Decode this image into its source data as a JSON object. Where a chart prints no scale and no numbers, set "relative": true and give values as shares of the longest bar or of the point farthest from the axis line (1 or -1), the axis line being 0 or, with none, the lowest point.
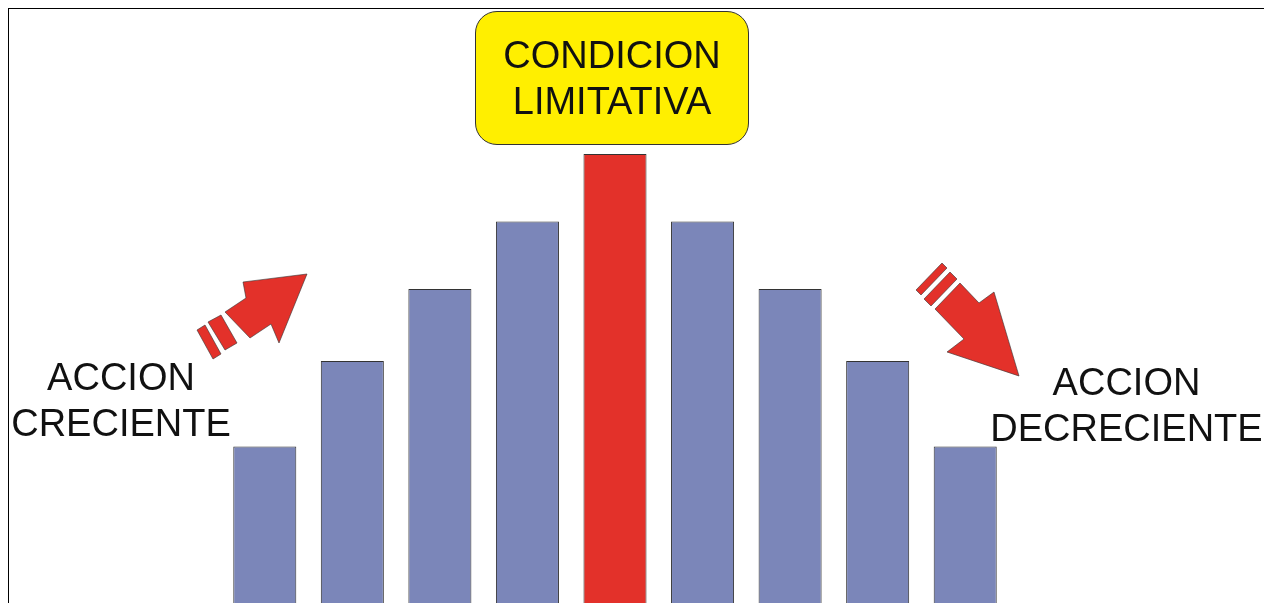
{
  "chart_data": {
    "type": "bar",
    "relative": true,
    "categories": [
      null,
      null,
      null,
      null,
      null,
      null,
      null,
      null,
      null
    ],
    "values": [
      0.35,
      0.54,
      0.7,
      0.85,
      1,
      0.85,
      0.7,
      0.54,
      0.35
    ],
    "colors": [
      "#7b86b9",
      "#7b86b9",
      "#7b86b9",
      "#7b86b9",
      "#e3312a",
      "#7b86b9",
      "#7b86b9",
      "#7b86b9",
      "#7b86b9"
    ],
    "annotations": [
      "CONDICION LIMITATIVA",
      "ACCION CRECIENTE",
      "ACCION DECRECIENTE"
    ],
    "legend": false
  }
}
